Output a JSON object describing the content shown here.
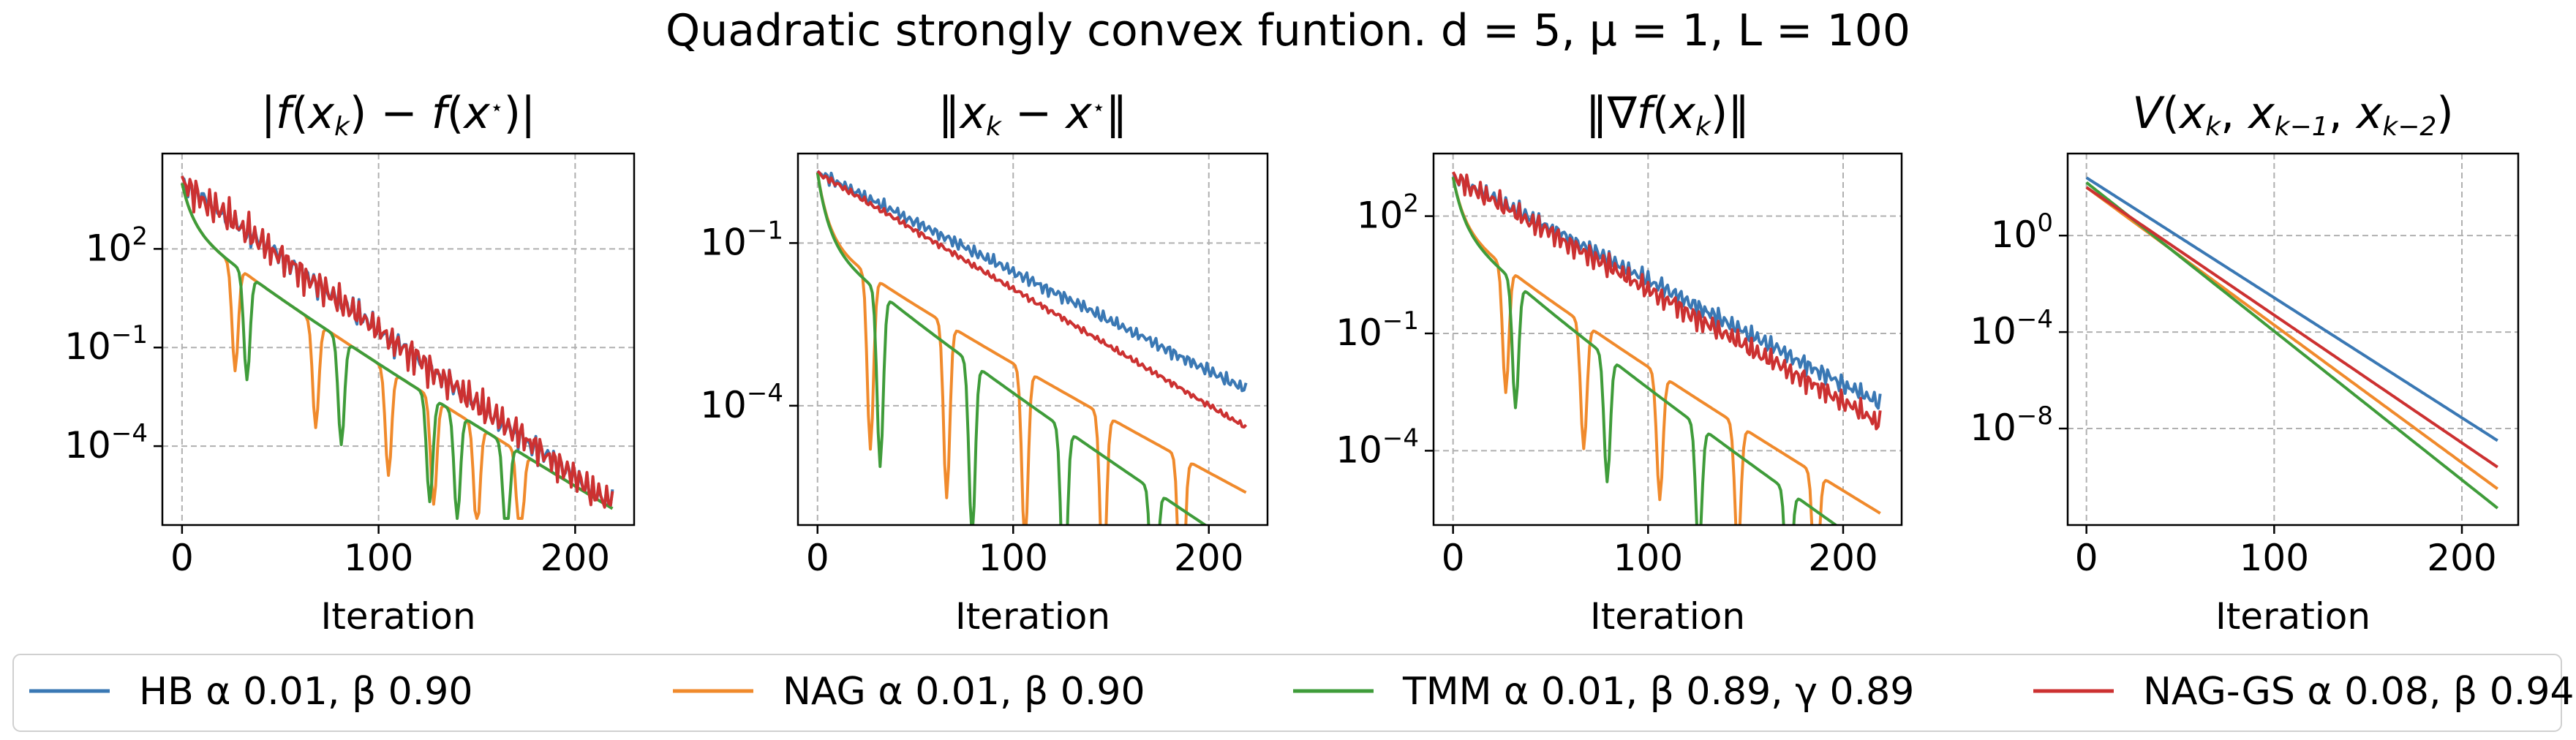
{
  "figure": {
    "suptitle": "Quadratic strongly convex funtion. d = 5, μ = 1, L = 100"
  },
  "legend": {
    "entries": [
      {
        "label": "HB α 0.01, β 0.90",
        "color": "#3a78b4"
      },
      {
        "label": "NAG α 0.01, β 0.90",
        "color": "#f08a2c"
      },
      {
        "label": "TMM α 0.01, β 0.89, γ 0.89",
        "color": "#3f9c3a"
      },
      {
        "label": "NAG-GS α 0.08, β 0.94",
        "color": "#cc3131"
      }
    ]
  },
  "chart_data": [
    {
      "type": "line",
      "title": "|f(x_k) − f(x*)|",
      "xlabel": "Iteration",
      "ylabel": "",
      "log_y": true,
      "grid": true,
      "xlim": [
        -10,
        230
      ],
      "ylim_exp": [
        -6.4,
        4.9
      ],
      "xticks": [
        0,
        100,
        200
      ],
      "yticks": [
        {
          "exp": 2,
          "label": "10^2"
        },
        {
          "exp": -1,
          "label": "10^-1"
        },
        {
          "exp": -4,
          "label": "10^-4"
        }
      ],
      "series": [
        {
          "name": "HB α 0.01, β 0.90",
          "color": "#3a78b4",
          "start_exp": 4.0,
          "end_exp": -5.8,
          "osc": 0.45,
          "floor_exp": -5.8
        },
        {
          "name": "NAG α 0.01, β 0.90",
          "color": "#f08a2c",
          "start_exp": 4.0,
          "floor_exp": -6.2,
          "dips": [
            27,
            68,
            105,
            128,
            150,
            172
          ]
        },
        {
          "name": "TMM α 0.01, β 0.89, γ 0.89",
          "color": "#3f9c3a",
          "start_exp": 4.0,
          "floor_exp": -6.2,
          "dips": [
            33,
            81,
            126,
            140,
            165
          ]
        },
        {
          "name": "NAG-GS α 0.08, β 0.94",
          "color": "#cc3131",
          "start_exp": 4.0,
          "end_exp": -5.8,
          "osc": 0.55,
          "floor_exp": -5.8
        }
      ]
    },
    {
      "type": "line",
      "title": "‖x_k − x*‖",
      "xlabel": "Iteration",
      "ylabel": "",
      "log_y": true,
      "grid": true,
      "xlim": [
        -10,
        230
      ],
      "ylim_exp": [
        -6.2,
        0.65
      ],
      "xticks": [
        0,
        100,
        200
      ],
      "yticks": [
        {
          "exp": -1,
          "label": "10^-1"
        },
        {
          "exp": -4,
          "label": "10^-4"
        }
      ],
      "series": [
        {
          "name": "HB α 0.01, β 0.90",
          "color": "#3a78b4",
          "start_exp": 0.3,
          "end_exp": -3.7,
          "osc": 0.12
        },
        {
          "name": "NAG α 0.01, β 0.90",
          "color": "#f08a2c",
          "start_exp": 0.3,
          "end_exp": -4.4,
          "dips": [
            27,
            66,
            106,
            146,
            186
          ]
        },
        {
          "name": "TMM α 0.01, β 0.89, γ 0.89",
          "color": "#3f9c3a",
          "start_exp": 0.3,
          "end_exp": -5.5,
          "dips": [
            32,
            79,
            126,
            172,
            217
          ]
        },
        {
          "name": "NAG-GS α 0.08, β 0.94",
          "color": "#cc3131",
          "start_exp": 0.3,
          "end_exp": -4.4,
          "osc": 0.06
        }
      ]
    },
    {
      "type": "line",
      "title": "‖∇f(x_k)‖",
      "xlabel": "Iteration",
      "ylabel": "",
      "log_y": true,
      "grid": true,
      "xlim": [
        -10,
        230
      ],
      "ylim_exp": [
        -5.9,
        3.6
      ],
      "xticks": [
        0,
        100,
        200
      ],
      "yticks": [
        {
          "exp": 2,
          "label": "10^2"
        },
        {
          "exp": -1,
          "label": "10^-1"
        },
        {
          "exp": -4,
          "label": "10^-4"
        }
      ],
      "series": [
        {
          "name": "HB α 0.01, β 0.90",
          "color": "#3a78b4",
          "start_exp": 3.0,
          "end_exp": -2.8,
          "osc": 0.25
        },
        {
          "name": "NAG α 0.01, β 0.90",
          "color": "#f08a2c",
          "start_exp": 3.0,
          "end_exp": -4.4,
          "dips": [
            27,
            67,
            106,
            146,
            186
          ]
        },
        {
          "name": "TMM α 0.01, β 0.89, γ 0.89",
          "color": "#3f9c3a",
          "start_exp": 3.0,
          "end_exp": -5.5,
          "dips": [
            32,
            79,
            126,
            172
          ]
        },
        {
          "name": "NAG-GS α 0.08, β 0.94",
          "color": "#cc3131",
          "start_exp": 3.0,
          "end_exp": -3.3,
          "osc": 0.3
        }
      ]
    },
    {
      "type": "line",
      "title": "V(x_k, x_{k−1}, x_{k−2})",
      "xlabel": "Iteration",
      "ylabel": "",
      "log_y": true,
      "grid": true,
      "xlim": [
        -10,
        230
      ],
      "ylim_exp": [
        -12.0,
        3.4
      ],
      "xticks": [
        0,
        100,
        200
      ],
      "yticks": [
        {
          "exp": 0,
          "label": "10^0"
        },
        {
          "exp": -4,
          "label": "10^-4"
        },
        {
          "exp": -8,
          "label": "10^-8"
        }
      ],
      "series": [
        {
          "name": "HB α 0.01, β 0.90",
          "color": "#3a78b4",
          "start_exp": 2.4,
          "end_exp": -8.5
        },
        {
          "name": "NAG α 0.01, β 0.90",
          "color": "#f08a2c",
          "start_exp": 2.0,
          "end_exp": -10.5
        },
        {
          "name": "TMM α 0.01, β 0.89, γ 0.89",
          "color": "#3f9c3a",
          "start_exp": 2.2,
          "end_exp": -11.3
        },
        {
          "name": "NAG-GS α 0.08, β 0.94",
          "color": "#cc3131",
          "start_exp": 2.0,
          "end_exp": -9.6
        }
      ]
    }
  ]
}
